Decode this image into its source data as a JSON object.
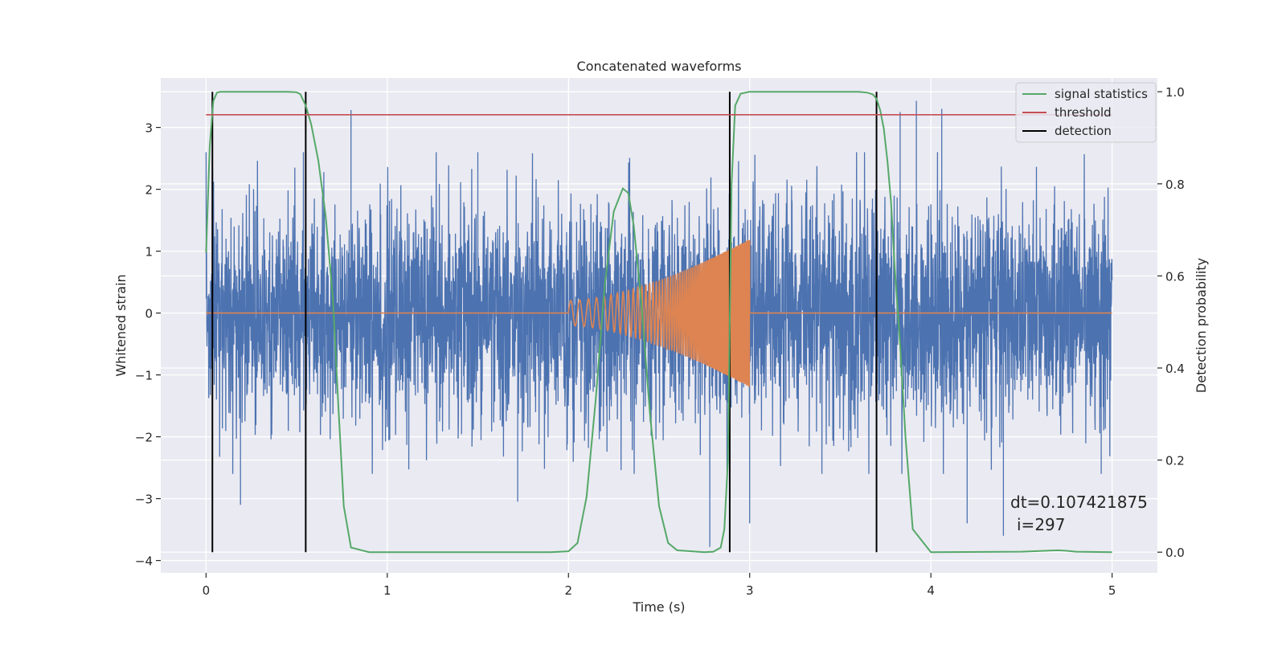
{
  "chart_data": {
    "type": "line",
    "title": "Concatenated waveforms",
    "xlabel": "Time (s)",
    "ylabel": "Whitened strain",
    "y2label": "Detection probability",
    "xlim": [
      -0.25,
      5.25
    ],
    "ylim": [
      -4.2,
      3.8
    ],
    "y2lim": [
      -0.045,
      1.03
    ],
    "xticks": [
      0,
      1,
      2,
      3,
      4,
      5
    ],
    "yticks": [
      -4,
      -3,
      -2,
      -1,
      0,
      1,
      2,
      3
    ],
    "y2ticks": [
      0.0,
      0.2,
      0.4,
      0.6,
      0.8,
      1.0
    ],
    "grid": true,
    "legend_position": "top-right",
    "annotation": [
      "dt=0.107421875",
      "i=297"
    ],
    "colors": {
      "background": "#eaeaf2",
      "grid": "#ffffff",
      "strain": "#4c72b0",
      "injected": "#dd8452",
      "signal_statistics": "#55a868",
      "threshold": "#c44e52",
      "detection": "#000000"
    },
    "series": [
      {
        "name": "strain",
        "axis": "left",
        "kind": "noise",
        "x_range": [
          0,
          5
        ],
        "typical_envelope": [
          -2.0,
          2.0
        ],
        "peaks": [
          [
            0.8,
            3.28
          ],
          [
            1.5,
            2.6
          ],
          [
            3.83,
            3.25
          ],
          [
            3.92,
            3.43
          ],
          [
            4.06,
            3.3
          ],
          [
            0.19,
            -3.1
          ],
          [
            1.72,
            -3.05
          ],
          [
            2.78,
            -3.78
          ],
          [
            3.0,
            -3.4
          ],
          [
            4.2,
            -3.4
          ],
          [
            4.4,
            -3.6
          ],
          [
            4.94,
            -2.6
          ]
        ]
      },
      {
        "name": "injected",
        "axis": "left",
        "kind": "chirp",
        "x_range": [
          2.0,
          3.0
        ],
        "amplitude_range": [
          0.2,
          1.2
        ],
        "frequency_hz_range": [
          20,
          200
        ]
      },
      {
        "name": "signal statistics",
        "axis": "right",
        "x": [
          0,
          0.02,
          0.04,
          0.06,
          0.08,
          0.1,
          0.15,
          0.2,
          0.3,
          0.4,
          0.45,
          0.5,
          0.52,
          0.55,
          0.58,
          0.62,
          0.66,
          0.7,
          0.73,
          0.76,
          0.8,
          0.9,
          1.0,
          1.5,
          1.9,
          2.0,
          2.05,
          2.1,
          2.15,
          2.2,
          2.25,
          2.3,
          2.33,
          2.36,
          2.4,
          2.45,
          2.5,
          2.55,
          2.6,
          2.75,
          2.8,
          2.84,
          2.86,
          2.88,
          2.9,
          2.92,
          2.95,
          3.0,
          3.2,
          3.5,
          3.6,
          3.65,
          3.68,
          3.7,
          3.72,
          3.74,
          3.76,
          3.78,
          3.8,
          3.83,
          3.86,
          3.9,
          4.0,
          4.5,
          4.7,
          4.75,
          4.8,
          5.0
        ],
        "y": [
          0.65,
          0.88,
          0.98,
          0.998,
          1.0,
          1.0,
          1.0,
          1.0,
          1.0,
          1.0,
          1.0,
          0.999,
          0.995,
          0.97,
          0.93,
          0.85,
          0.73,
          0.55,
          0.32,
          0.1,
          0.01,
          0.0,
          0.0,
          0.0,
          0.0,
          0.002,
          0.02,
          0.12,
          0.33,
          0.58,
          0.74,
          0.79,
          0.78,
          0.71,
          0.55,
          0.3,
          0.1,
          0.02,
          0.004,
          0.0,
          0.001,
          0.01,
          0.05,
          0.2,
          0.8,
          0.97,
          0.996,
          1.0,
          1.0,
          1.0,
          1.0,
          0.998,
          0.994,
          0.985,
          0.96,
          0.92,
          0.85,
          0.76,
          0.62,
          0.45,
          0.25,
          0.05,
          0.0,
          0.001,
          0.004,
          0.003,
          0.001,
          0.0
        ]
      },
      {
        "name": "threshold",
        "axis": "right",
        "x": [
          0,
          5
        ],
        "y": [
          0.95,
          0.95
        ]
      },
      {
        "name": "detection",
        "axis": "right",
        "kind": "vlines",
        "x": [
          0.035,
          0.55,
          2.89,
          3.7
        ],
        "y_range": [
          0.0,
          1.0
        ]
      }
    ],
    "legend": [
      "signal statistics",
      "threshold",
      "detection"
    ]
  }
}
